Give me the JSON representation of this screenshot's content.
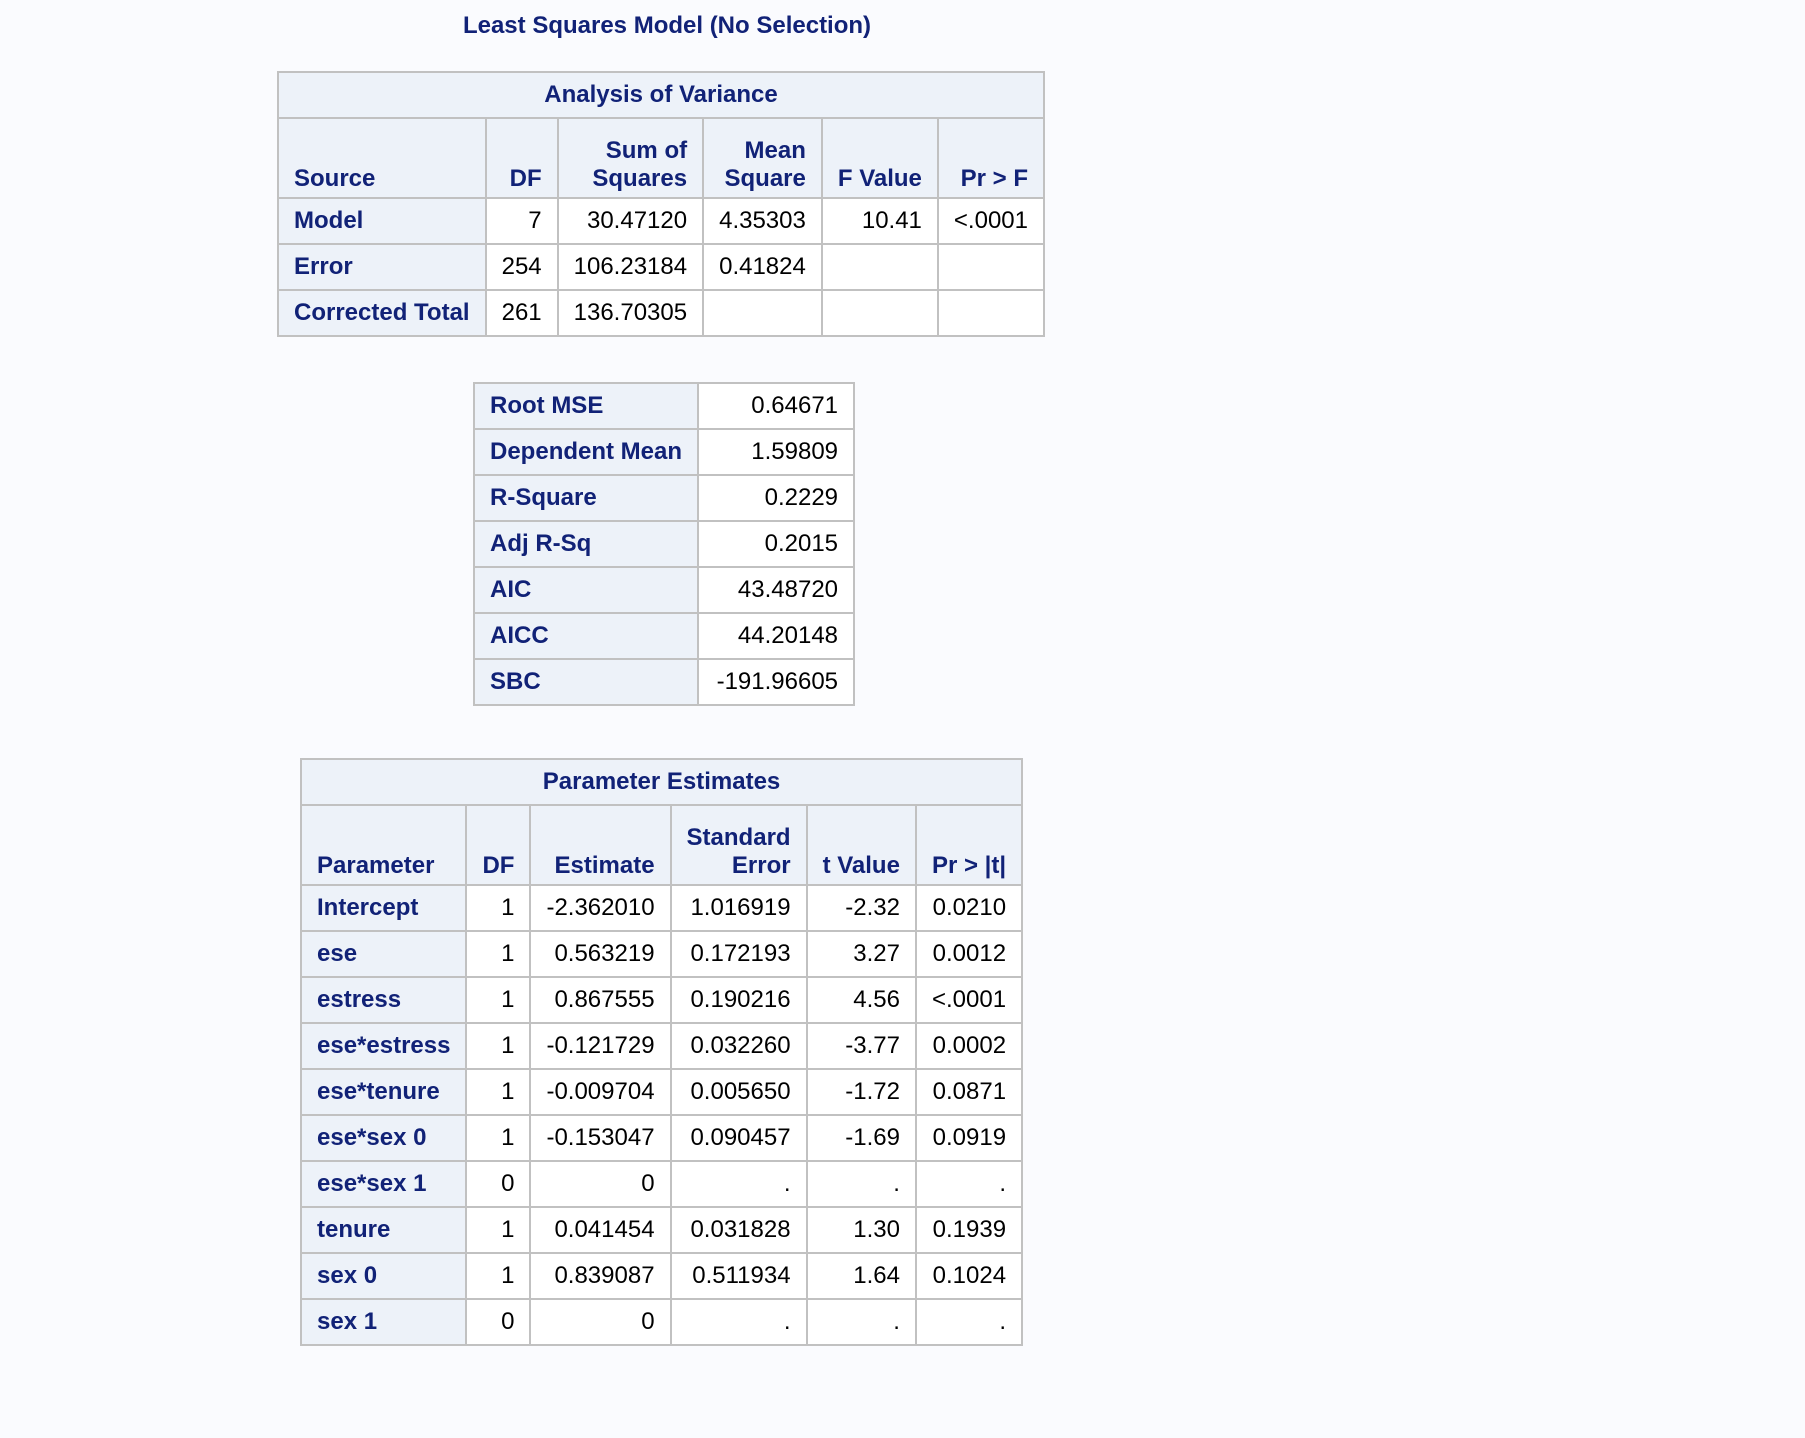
{
  "title": "Least Squares Model (No Selection)",
  "anova": {
    "caption": "Analysis of Variance",
    "headers": {
      "source": "Source",
      "df": "DF",
      "ss_line1": "Sum of",
      "ss_line2": "Squares",
      "ms_line1": "Mean",
      "ms_line2": "Square",
      "f": "F Value",
      "p": "Pr > F"
    },
    "rows": [
      {
        "source": "Model",
        "df": "7",
        "ss": "30.47120",
        "ms": "4.35303",
        "f": "10.41",
        "p": "<.0001"
      },
      {
        "source": "Error",
        "df": "254",
        "ss": "106.23184",
        "ms": "0.41824",
        "f": "",
        "p": ""
      },
      {
        "source": "Corrected Total",
        "df": "261",
        "ss": "136.70305",
        "ms": "",
        "f": "",
        "p": ""
      }
    ]
  },
  "fit": {
    "rows": [
      {
        "label": "Root MSE",
        "value": "0.64671"
      },
      {
        "label": "Dependent Mean",
        "value": "1.59809"
      },
      {
        "label": "R-Square",
        "value": "0.2229"
      },
      {
        "label": "Adj R-Sq",
        "value": "0.2015"
      },
      {
        "label": "AIC",
        "value": "43.48720"
      },
      {
        "label": "AICC",
        "value": "44.20148"
      },
      {
        "label": "SBC",
        "value": "-191.96605"
      }
    ]
  },
  "params": {
    "caption": "Parameter Estimates",
    "headers": {
      "parameter": "Parameter",
      "df": "DF",
      "estimate": "Estimate",
      "se_line1": "Standard",
      "se_line2": "Error",
      "t": "t Value",
      "p": "Pr > |t|"
    },
    "rows": [
      {
        "parameter": "Intercept",
        "df": "1",
        "estimate": "-2.362010",
        "se": "1.016919",
        "t": "-2.32",
        "p": "0.0210"
      },
      {
        "parameter": "ese",
        "df": "1",
        "estimate": "0.563219",
        "se": "0.172193",
        "t": "3.27",
        "p": "0.0012"
      },
      {
        "parameter": "estress",
        "df": "1",
        "estimate": "0.867555",
        "se": "0.190216",
        "t": "4.56",
        "p": "<.0001"
      },
      {
        "parameter": "ese*estress",
        "df": "1",
        "estimate": "-0.121729",
        "se": "0.032260",
        "t": "-3.77",
        "p": "0.0002"
      },
      {
        "parameter": "ese*tenure",
        "df": "1",
        "estimate": "-0.009704",
        "se": "0.005650",
        "t": "-1.72",
        "p": "0.0871"
      },
      {
        "parameter": "ese*sex 0",
        "df": "1",
        "estimate": "-0.153047",
        "se": "0.090457",
        "t": "-1.69",
        "p": "0.0919"
      },
      {
        "parameter": "ese*sex 1",
        "df": "0",
        "estimate": "0",
        "se": ".",
        "t": ".",
        "p": "."
      },
      {
        "parameter": "tenure",
        "df": "1",
        "estimate": "0.041454",
        "se": "0.031828",
        "t": "1.30",
        "p": "0.1939"
      },
      {
        "parameter": "sex 0",
        "df": "1",
        "estimate": "0.839087",
        "se": "0.511934",
        "t": "1.64",
        "p": "0.1024"
      },
      {
        "parameter": "sex 1",
        "df": "0",
        "estimate": "0",
        "se": ".",
        "t": ".",
        "p": "."
      }
    ]
  },
  "colors": {
    "header_text": "#112277",
    "header_bg": "#edf2f9",
    "border": "#c1c1c1",
    "page_bg": "#fafbfe"
  }
}
